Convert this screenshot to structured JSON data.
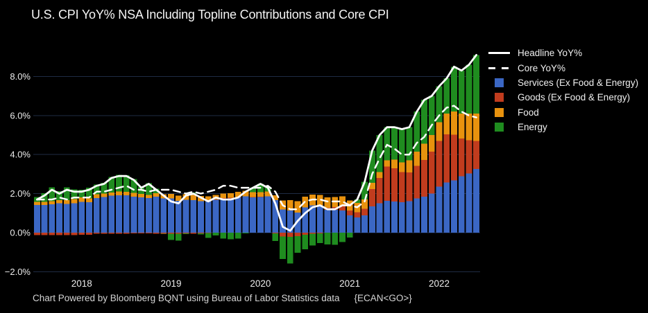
{
  "colors": {
    "background": "#000000",
    "grid": "#1f2c44",
    "axis_text": "#ececec",
    "title_text": "#f5f5f5",
    "footer_text": "#d4d4d4",
    "services_blue": "#3b67c4",
    "goods_red": "#c13c1e",
    "food_orange": "#e8920e",
    "energy_green": "#1f8c1f",
    "line_white": "#ffffff"
  },
  "footer": {
    "credit": "Chart Powered by Bloomberg BQNT using Bureau of Labor Statistics data",
    "code": "{ECAN<GO>}"
  },
  "chart_data": {
    "type": "bar",
    "stacked": true,
    "title": "U.S. CPI YoY% NSA Including Topline Contributions and Core CPI",
    "xlabel": "",
    "ylabel": "",
    "ylim": [
      -2.4,
      9.5
    ],
    "yticks": [
      -2,
      0,
      2,
      4,
      6,
      8
    ],
    "ytick_suffix": "%",
    "grid": "horizontal",
    "legend_position": "top-right",
    "x": [
      "2017-07",
      "2017-08",
      "2017-09",
      "2017-10",
      "2017-11",
      "2017-12",
      "2018-01",
      "2018-02",
      "2018-03",
      "2018-04",
      "2018-05",
      "2018-06",
      "2018-07",
      "2018-08",
      "2018-09",
      "2018-10",
      "2018-11",
      "2018-12",
      "2019-01",
      "2019-02",
      "2019-03",
      "2019-04",
      "2019-05",
      "2019-06",
      "2019-07",
      "2019-08",
      "2019-09",
      "2019-10",
      "2019-11",
      "2019-12",
      "2020-01",
      "2020-02",
      "2020-03",
      "2020-04",
      "2020-05",
      "2020-06",
      "2020-07",
      "2020-08",
      "2020-09",
      "2020-10",
      "2020-11",
      "2020-12",
      "2021-01",
      "2021-02",
      "2021-03",
      "2021-04",
      "2021-05",
      "2021-06",
      "2021-07",
      "2021-08",
      "2021-09",
      "2021-10",
      "2021-11",
      "2021-12",
      "2022-01",
      "2022-02",
      "2022-03",
      "2022-04",
      "2022-05",
      "2022-06"
    ],
    "xticks": [
      {
        "label": "2018",
        "index": 6
      },
      {
        "label": "2019",
        "index": 18
      },
      {
        "label": "2020",
        "index": 30
      },
      {
        "label": "2021",
        "index": 42
      },
      {
        "label": "2022",
        "index": 54
      }
    ],
    "series": [
      {
        "name": "Services (Ex Food & Energy)",
        "kind": "bar",
        "color": "#3b67c4",
        "values": [
          1.42,
          1.42,
          1.46,
          1.5,
          1.48,
          1.51,
          1.58,
          1.56,
          1.78,
          1.82,
          1.9,
          1.92,
          1.91,
          1.85,
          1.8,
          1.78,
          1.84,
          1.76,
          1.76,
          1.63,
          1.69,
          1.67,
          1.61,
          1.6,
          1.68,
          1.73,
          1.75,
          1.8,
          1.86,
          1.81,
          1.83,
          1.87,
          1.66,
          1.18,
          1.13,
          1.02,
          1.3,
          1.4,
          1.4,
          1.17,
          1.17,
          1.14,
          0.89,
          0.78,
          0.89,
          1.35,
          1.5,
          1.64,
          1.59,
          1.56,
          1.62,
          1.75,
          1.85,
          2.01,
          2.36,
          2.57,
          2.67,
          2.89,
          3.04,
          3.26
        ]
      },
      {
        "name": "Goods (Ex Food & Energy)",
        "kind": "bar",
        "color": "#c13c1e",
        "values": [
          -0.12,
          -0.12,
          -0.12,
          -0.12,
          -0.12,
          -0.12,
          -0.1,
          -0.1,
          -0.06,
          -0.06,
          -0.06,
          -0.06,
          -0.05,
          -0.04,
          -0.04,
          -0.04,
          -0.05,
          -0.05,
          -0.05,
          -0.05,
          -0.04,
          -0.06,
          -0.04,
          -0.02,
          0.02,
          0.04,
          0.04,
          0.02,
          0.01,
          0.02,
          0.01,
          0.0,
          -0.04,
          -0.2,
          -0.22,
          -0.17,
          -0.1,
          -0.05,
          -0.03,
          0.1,
          0.15,
          0.2,
          0.25,
          0.26,
          0.34,
          0.88,
          1.3,
          1.74,
          1.7,
          1.54,
          1.46,
          1.68,
          1.88,
          2.14,
          2.34,
          2.46,
          2.34,
          1.94,
          1.7,
          1.44
        ]
      },
      {
        "name": "Food",
        "kind": "bar",
        "color": "#e8920e",
        "values": [
          0.15,
          0.15,
          0.16,
          0.17,
          0.19,
          0.21,
          0.22,
          0.19,
          0.18,
          0.19,
          0.16,
          0.19,
          0.19,
          0.19,
          0.19,
          0.16,
          0.19,
          0.21,
          0.22,
          0.27,
          0.28,
          0.27,
          0.27,
          0.26,
          0.24,
          0.23,
          0.24,
          0.28,
          0.27,
          0.24,
          0.24,
          0.24,
          0.26,
          0.47,
          0.54,
          0.6,
          0.55,
          0.55,
          0.53,
          0.53,
          0.5,
          0.53,
          0.51,
          0.49,
          0.47,
          0.32,
          0.3,
          0.32,
          0.46,
          0.5,
          0.62,
          0.72,
          0.82,
          0.85,
          0.95,
          1.07,
          1.19,
          1.27,
          1.36,
          1.4
        ]
      },
      {
        "name": "Energy",
        "kind": "bar",
        "color": "#1f8c1f",
        "values": [
          0.25,
          0.45,
          0.7,
          0.45,
          0.65,
          0.5,
          0.4,
          0.55,
          0.5,
          0.55,
          0.8,
          0.85,
          0.85,
          0.7,
          0.35,
          0.6,
          0.22,
          -0.02,
          -0.33,
          -0.35,
          -0.03,
          0.12,
          -0.04,
          -0.24,
          -0.14,
          -0.3,
          -0.33,
          -0.3,
          -0.04,
          0.23,
          0.42,
          0.19,
          -0.38,
          -1.15,
          -1.35,
          -0.85,
          -0.75,
          -0.6,
          -0.5,
          -0.6,
          -0.62,
          -0.47,
          -0.25,
          0.17,
          0.9,
          1.65,
          1.9,
          1.7,
          1.65,
          1.7,
          1.7,
          2.05,
          2.25,
          2.0,
          1.85,
          1.8,
          2.3,
          2.2,
          2.5,
          3.0
        ]
      },
      {
        "name": "Headline YoY%",
        "kind": "line",
        "dash": false,
        "color": "#ffffff",
        "values": [
          1.7,
          1.9,
          2.2,
          2.0,
          2.2,
          2.1,
          2.1,
          2.2,
          2.4,
          2.5,
          2.8,
          2.9,
          2.9,
          2.7,
          2.3,
          2.5,
          2.2,
          1.9,
          1.6,
          1.5,
          1.9,
          2.0,
          1.8,
          1.6,
          1.8,
          1.7,
          1.7,
          1.8,
          2.1,
          2.3,
          2.5,
          2.3,
          1.5,
          0.3,
          0.1,
          0.6,
          1.0,
          1.3,
          1.4,
          1.2,
          1.2,
          1.4,
          1.4,
          1.7,
          2.6,
          4.2,
          5.0,
          5.4,
          5.4,
          5.3,
          5.4,
          6.2,
          6.8,
          7.0,
          7.5,
          7.9,
          8.5,
          8.3,
          8.6,
          9.1
        ]
      },
      {
        "name": "Core YoY%",
        "kind": "line",
        "dash": true,
        "color": "#ffffff",
        "values": [
          1.7,
          1.7,
          1.7,
          1.8,
          1.7,
          1.8,
          1.8,
          1.8,
          2.1,
          2.1,
          2.2,
          2.3,
          2.4,
          2.2,
          2.2,
          2.1,
          2.2,
          2.2,
          2.2,
          2.1,
          2.0,
          2.1,
          2.0,
          2.1,
          2.2,
          2.4,
          2.4,
          2.3,
          2.3,
          2.3,
          2.3,
          2.4,
          2.1,
          1.4,
          1.2,
          1.2,
          1.6,
          1.7,
          1.7,
          1.6,
          1.6,
          1.6,
          1.4,
          1.3,
          1.6,
          3.0,
          3.8,
          4.5,
          4.3,
          4.0,
          4.0,
          4.6,
          4.9,
          5.5,
          6.0,
          6.4,
          6.5,
          6.2,
          6.0,
          5.9
        ]
      }
    ]
  }
}
